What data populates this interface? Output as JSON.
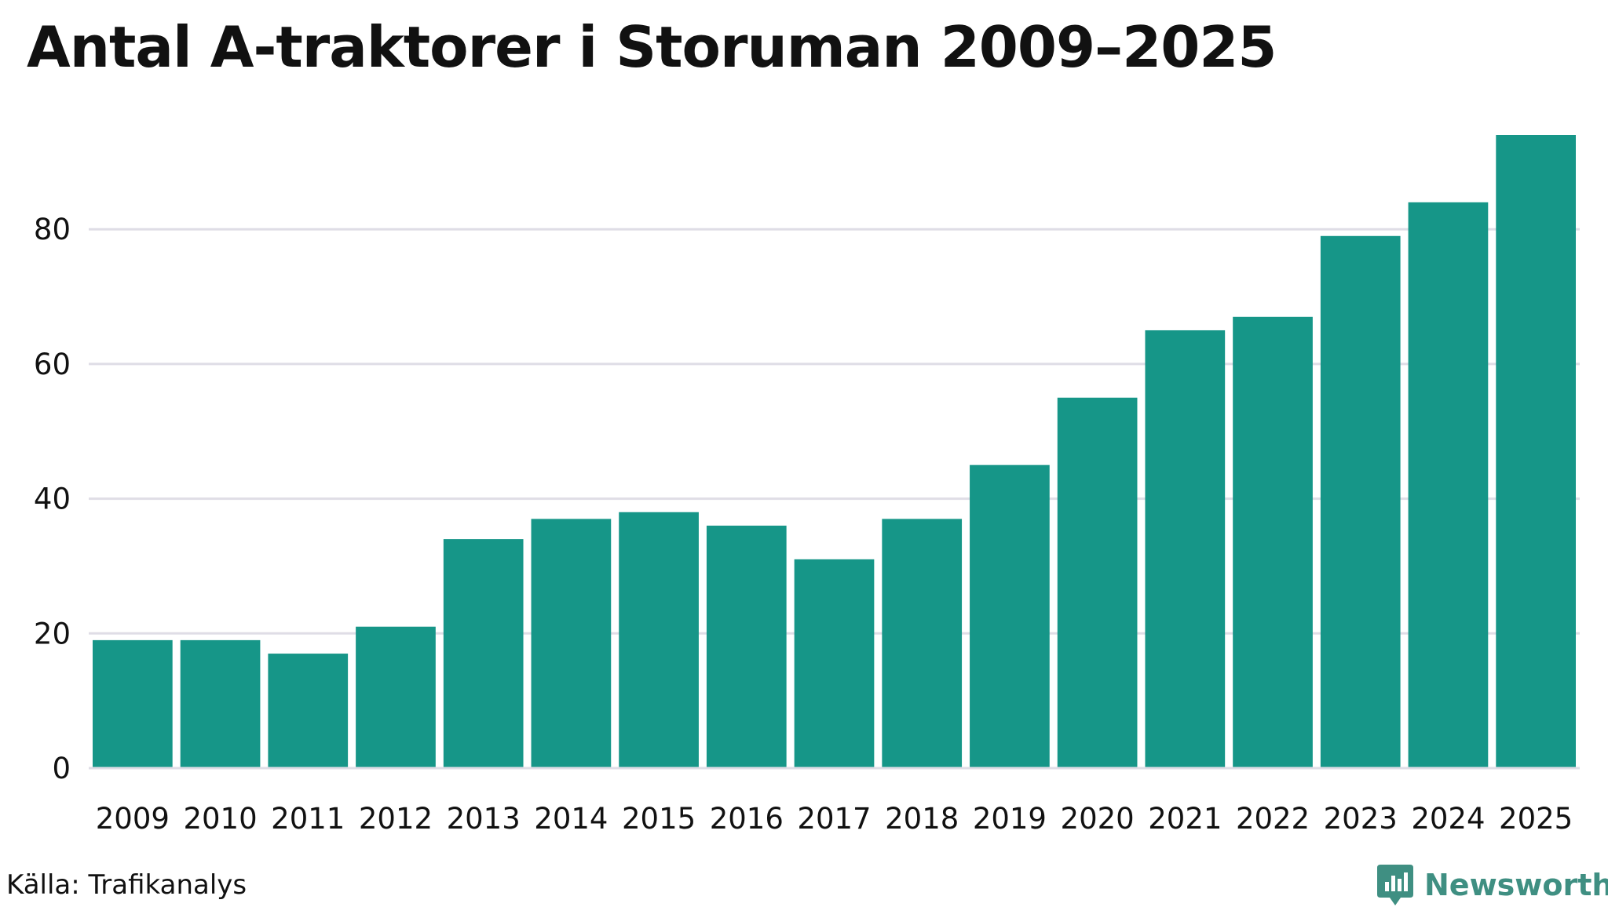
{
  "title": "Antal A-traktorer i Storuman 2009–2025",
  "source": "Källa: Trafikanalys",
  "brand": {
    "name": "Newsworthy",
    "icon": "newsworthy-logo-icon"
  },
  "colors": {
    "bar": "#169688",
    "grid": "#dfdde6",
    "text": "#111111",
    "brand": "#3f8f82"
  },
  "chart_data": {
    "type": "bar",
    "title": "Antal A-traktorer i Storuman 2009–2025",
    "xlabel": "",
    "ylabel": "",
    "categories": [
      "2009",
      "2010",
      "2011",
      "2012",
      "2013",
      "2014",
      "2015",
      "2016",
      "2017",
      "2018",
      "2019",
      "2020",
      "2021",
      "2022",
      "2023",
      "2024",
      "2025"
    ],
    "values": [
      19,
      19,
      17,
      21,
      34,
      37,
      38,
      36,
      31,
      37,
      45,
      55,
      65,
      67,
      79,
      84,
      94
    ],
    "ylim": [
      0,
      94
    ],
    "yticks": [
      0,
      20,
      40,
      60,
      80
    ],
    "grid": true,
    "legend": "none"
  }
}
